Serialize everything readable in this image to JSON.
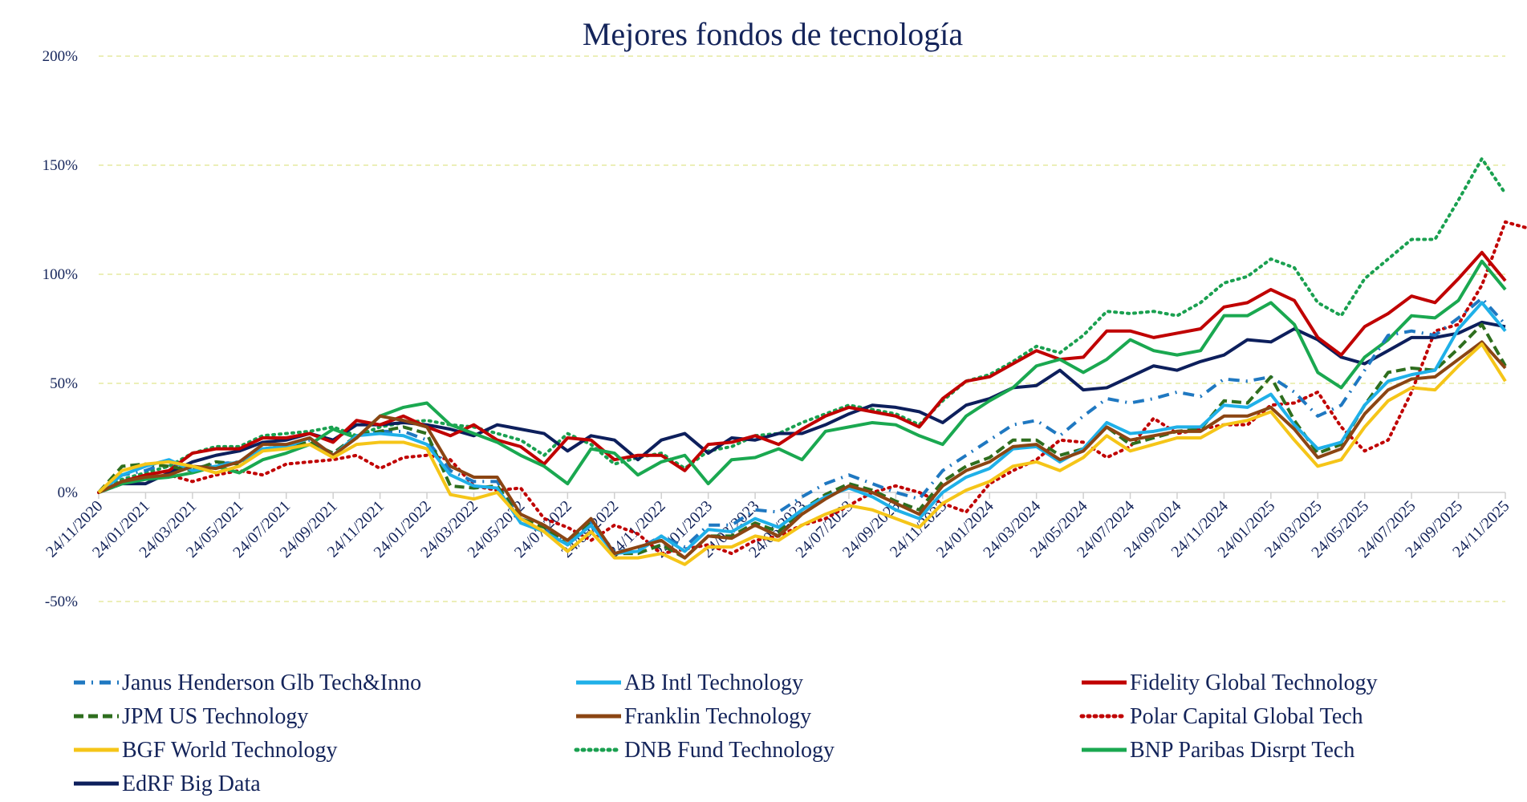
{
  "chart_data": {
    "type": "line",
    "title": "Mejores fondos de tecnología",
    "xlabel": "",
    "ylabel": "",
    "ylim": [
      -50,
      200
    ],
    "y_ticks": [
      -50,
      0,
      50,
      100,
      150,
      200
    ],
    "y_tick_labels": [
      "-50%",
      "0%",
      "50%",
      "100%",
      "150%",
      "200%"
    ],
    "grid": true,
    "legend_position": "bottom",
    "x_tick_labels": [
      "24/11/2020",
      "24/01/2021",
      "24/03/2021",
      "24/05/2021",
      "24/07/2021",
      "24/09/2021",
      "24/11/2021",
      "24/01/2022",
      "24/03/2022",
      "24/05/2022",
      "24/07/2022",
      "24/09/2022",
      "24/11/2022",
      "24/01/2023",
      "24/03/2023",
      "24/05/2023",
      "24/07/2023",
      "24/09/2023",
      "24/11/2023",
      "24/01/2024",
      "24/03/2024",
      "24/05/2024",
      "24/07/2024",
      "24/09/2024",
      "24/11/2024",
      "24/01/2025",
      "24/03/2025",
      "24/05/2025",
      "24/07/2025",
      "24/09/2025",
      "24/11/2025"
    ],
    "x_tick_every_months": 2,
    "series": [
      {
        "name": "Janus Henderson Glb Tech&Inno",
        "color": "#1f78c1",
        "style": "dashdot",
        "values": [
          0,
          8,
          10,
          14,
          11,
          13,
          14,
          20,
          21,
          24,
          17,
          26,
          28,
          28,
          24,
          10,
          5,
          5,
          -12,
          -16,
          -24,
          -14,
          -27,
          -26,
          -20,
          -25,
          -15,
          -15,
          -8,
          -9,
          -2,
          4,
          8,
          4,
          0,
          -3,
          10,
          17,
          24,
          31,
          33,
          26,
          35,
          43,
          41,
          43,
          46,
          44,
          52,
          51,
          53,
          46,
          35,
          40,
          56,
          72,
          74,
          72,
          80,
          89,
          77
        ]
      },
      {
        "name": "AB Intl Technology",
        "color": "#1fb0e8",
        "style": "solid",
        "values": [
          0,
          8,
          12,
          15,
          10,
          12,
          14,
          20,
          21,
          25,
          17,
          26,
          27,
          26,
          22,
          8,
          3,
          2,
          -14,
          -18,
          -24,
          -15,
          -28,
          -27,
          -20,
          -27,
          -17,
          -18,
          -12,
          -16,
          -8,
          -2,
          2,
          -2,
          -8,
          -12,
          0,
          7,
          11,
          20,
          21,
          14,
          20,
          32,
          27,
          28,
          30,
          30,
          40,
          39,
          45,
          31,
          20,
          23,
          40,
          51,
          54,
          56,
          75,
          87,
          74
        ]
      },
      {
        "name": "Fidelity Global Technology",
        "color": "#c00000",
        "style": "solid",
        "values": [
          0,
          5,
          8,
          10,
          18,
          20,
          20,
          25,
          25,
          27,
          23,
          33,
          31,
          35,
          30,
          26,
          31,
          24,
          21,
          13,
          25,
          24,
          15,
          17,
          17,
          10,
          22,
          23,
          26,
          22,
          29,
          35,
          39,
          37,
          35,
          30,
          43,
          51,
          53,
          59,
          65,
          61,
          62,
          74,
          74,
          71,
          73,
          75,
          85,
          87,
          93,
          88,
          71,
          63,
          76,
          82,
          90,
          87,
          98,
          110,
          97
        ]
      },
      {
        "name": "JPM US Technology",
        "color": "#2e6e1e",
        "style": "dashed",
        "values": [
          0,
          12,
          13,
          12,
          10,
          14,
          13,
          20,
          21,
          23,
          18,
          26,
          28,
          30,
          27,
          3,
          2,
          3,
          -12,
          -16,
          -24,
          -14,
          -28,
          -28,
          -24,
          -30,
          -20,
          -20,
          -14,
          -18,
          -8,
          -1,
          4,
          1,
          -4,
          -8,
          5,
          12,
          16,
          24,
          24,
          17,
          20,
          30,
          22,
          25,
          28,
          29,
          42,
          41,
          53,
          33,
          18,
          22,
          40,
          55,
          57,
          56,
          66,
          77,
          58
        ]
      },
      {
        "name": "Franklin Technology",
        "color": "#8b4513",
        "style": "solid",
        "values": [
          0,
          5,
          7,
          8,
          12,
          11,
          14,
          22,
          22,
          25,
          17,
          25,
          35,
          33,
          30,
          12,
          7,
          7,
          -10,
          -15,
          -22,
          -12,
          -28,
          -25,
          -22,
          -30,
          -20,
          -21,
          -15,
          -20,
          -10,
          -3,
          3,
          0,
          -5,
          -10,
          3,
          10,
          14,
          21,
          22,
          15,
          19,
          30,
          24,
          26,
          28,
          28,
          35,
          35,
          39,
          29,
          16,
          20,
          36,
          47,
          52,
          53,
          61,
          69,
          57
        ]
      },
      {
        "name": "Polar Capital Global Tech",
        "color": "#c00000",
        "style": "dotted",
        "values": [
          0,
          4,
          6,
          8,
          5,
          8,
          10,
          8,
          13,
          14,
          15,
          17,
          11,
          16,
          17,
          15,
          3,
          1,
          2,
          -12,
          -16,
          -22,
          -15,
          -19,
          -28,
          -26,
          -24,
          -28,
          -22,
          -20,
          -15,
          -12,
          -6,
          0,
          3,
          0,
          -5,
          -9,
          4,
          10,
          15,
          24,
          23,
          16,
          21,
          34,
          27,
          29,
          31,
          31,
          40,
          41,
          46,
          30,
          19,
          24,
          46,
          74,
          77,
          95,
          124,
          121
        ]
      },
      {
        "name": "BGF World Technology",
        "color": "#f5c518",
        "style": "solid",
        "values": [
          0,
          10,
          13,
          14,
          12,
          9,
          12,
          19,
          20,
          22,
          16,
          22,
          23,
          23,
          20,
          -1,
          -3,
          0,
          -12,
          -18,
          -27,
          -18,
          -30,
          -30,
          -28,
          -33,
          -25,
          -25,
          -20,
          -22,
          -15,
          -10,
          -6,
          -8,
          -12,
          -16,
          -5,
          1,
          5,
          12,
          14,
          10,
          16,
          26,
          19,
          22,
          25,
          25,
          31,
          33,
          37,
          24,
          12,
          15,
          30,
          42,
          48,
          47,
          58,
          68,
          51
        ]
      },
      {
        "name": "DNB Fund Technology",
        "color": "#1aa050",
        "style": "dotted",
        "values": [
          0,
          6,
          9,
          12,
          18,
          21,
          21,
          26,
          27,
          28,
          30,
          26,
          30,
          32,
          33,
          31,
          30,
          27,
          24,
          17,
          27,
          22,
          13,
          16,
          18,
          11,
          19,
          21,
          26,
          27,
          32,
          36,
          40,
          38,
          36,
          31,
          42,
          51,
          54,
          60,
          67,
          64,
          72,
          83,
          82,
          83,
          81,
          87,
          96,
          99,
          107,
          103,
          87,
          81,
          98,
          107,
          116,
          116,
          134,
          153,
          137
        ]
      },
      {
        "name": "BNP Paribas Disrpt Tech",
        "color": "#1aa850",
        "style": "solid",
        "values": [
          0,
          4,
          6,
          7,
          9,
          12,
          9,
          15,
          18,
          22,
          29,
          25,
          35,
          39,
          41,
          31,
          27,
          23,
          17,
          12,
          4,
          20,
          18,
          8,
          14,
          17,
          4,
          15,
          16,
          20,
          15,
          28,
          30,
          32,
          31,
          26,
          22,
          35,
          42,
          48,
          58,
          61,
          55,
          61,
          70,
          65,
          63,
          65,
          81,
          81,
          87,
          77,
          55,
          48,
          62,
          70,
          81,
          80,
          88,
          106,
          93
        ]
      },
      {
        "name": "EdRF Big Data",
        "color": "#0d1f5c",
        "style": "solid",
        "values": [
          0,
          4,
          4,
          9,
          14,
          17,
          19,
          23,
          24,
          27,
          24,
          31,
          31,
          32,
          31,
          29,
          26,
          31,
          29,
          27,
          19,
          26,
          24,
          15,
          24,
          27,
          18,
          25,
          24,
          27,
          27,
          31,
          36,
          40,
          39,
          37,
          32,
          40,
          43,
          48,
          49,
          56,
          47,
          48,
          53,
          58,
          56,
          60,
          63,
          70,
          69,
          75,
          70,
          62,
          59,
          65,
          71,
          71,
          73,
          78,
          76
        ]
      }
    ]
  }
}
